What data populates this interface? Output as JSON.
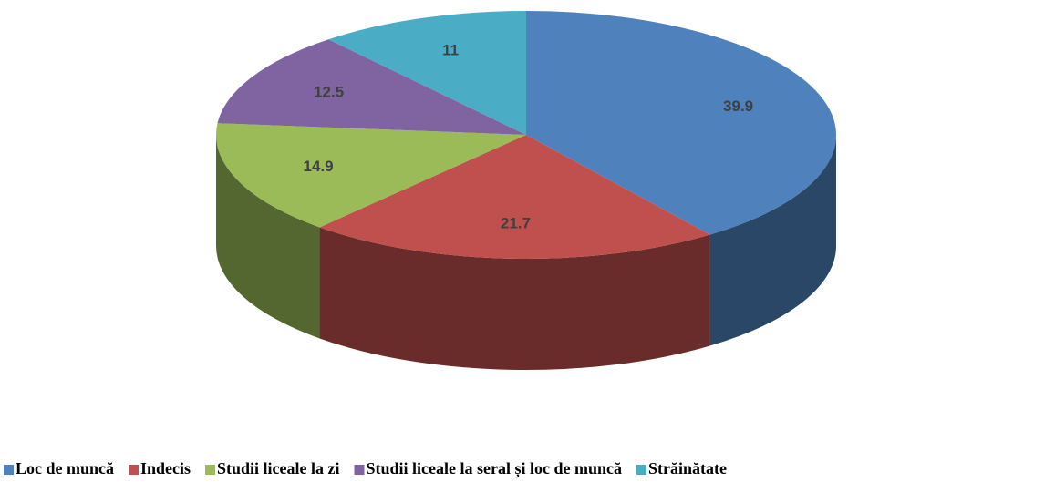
{
  "chart_data": {
    "type": "pie3d",
    "categories": [
      "Loc de muncă",
      "Indecis",
      "Studii liceale la zi",
      "Studii liceale la seral și loc de muncă",
      "Străinătate"
    ],
    "values": [
      39.9,
      21.7,
      14.9,
      12.5,
      11
    ],
    "colors": [
      "#4f81bd",
      "#c0504d",
      "#9bbb59",
      "#8064a2",
      "#4bacc6"
    ],
    "legend": "bottom"
  }
}
